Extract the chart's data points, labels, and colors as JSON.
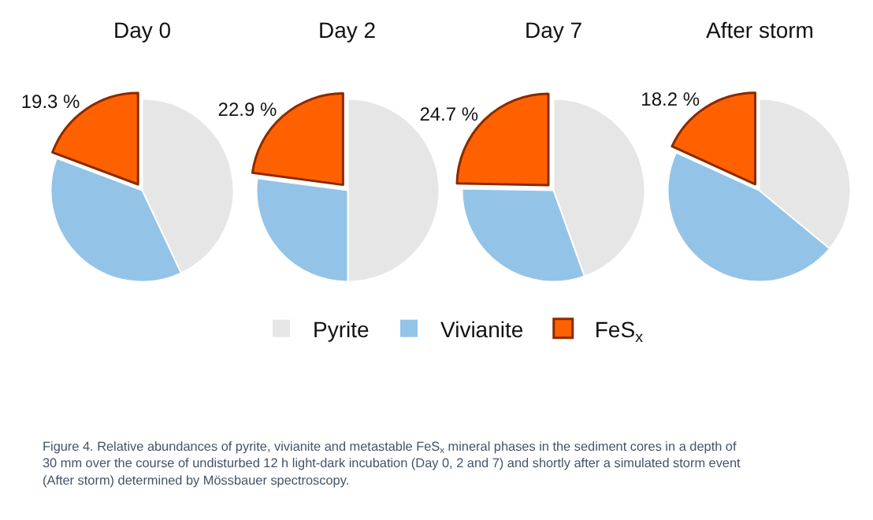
{
  "chart_data": [
    {
      "type": "pie",
      "title": "Day 0",
      "categories": [
        "Pyrite",
        "Vivianite",
        "FeS$_{x}$"
      ],
      "values": [
        43.0,
        37.7,
        19.3
      ],
      "colors": [
        "#e6e6e6",
        "#93c4e8",
        "#ff6100"
      ],
      "value_labels": [
        null,
        null,
        "19.3 %"
      ],
      "legend": "bottom"
    },
    {
      "type": "pie",
      "title": "Day 2",
      "categories": [
        null,
        null,
        null
      ],
      "values": [
        50.0,
        27.1,
        22.9
      ],
      "colors": [
        "#e6e6e6",
        "#93c4e8",
        "#ff6100"
      ],
      "value_labels": [
        null,
        null,
        "22.9 %"
      ]
    },
    {
      "type": "pie",
      "title": "Day 7",
      "categories": [
        null,
        null,
        null
      ],
      "values": [
        44.5,
        30.8,
        24.7
      ],
      "colors": [
        "#e6e6e6",
        "#93c4e8",
        "#ff6100"
      ],
      "value_labels": [
        null,
        null,
        "24.7 %"
      ]
    },
    {
      "type": "pie",
      "title": "After storm",
      "categories": [
        null,
        null,
        null
      ],
      "values": [
        36.0,
        45.8,
        18.2
      ],
      "colors": [
        "#e6e6e6",
        "#93c4e8",
        "#ff6100"
      ],
      "value_labels": [
        null,
        null,
        "18.2 %"
      ],
      "annotations": [
        "Figure 4. Relative abundances of pyrite, vivianite and metastable FeS$_{x}$ mineral phases in the sediment cores in a depth of 30 mm over the course of undisturbed 12 h light-dark incubation (Day 0, 2 and 7) and shortly after a simulated storm event (After storm) determined by Mössbauer spectroscopy."
      ]
    }
  ]
}
